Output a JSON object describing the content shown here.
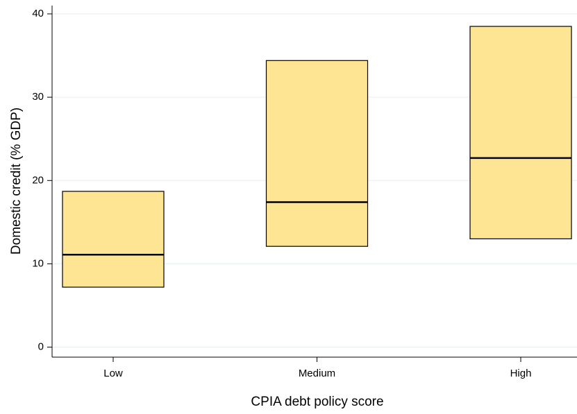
{
  "chart_data": {
    "type": "box",
    "x_label": "CPIA debt policy score",
    "y_label": "Domestic credit (% GDP)",
    "categories": [
      "Low",
      "Medium",
      "High"
    ],
    "q1": [
      7.2,
      12.1,
      13.0
    ],
    "median": [
      11.1,
      17.4,
      22.7
    ],
    "q3": [
      18.7,
      34.4,
      38.5
    ],
    "color": "#fde594",
    "ylim": [
      -1.2,
      41
    ],
    "yticks": [
      0,
      10,
      20,
      30,
      40
    ],
    "grid": true
  }
}
